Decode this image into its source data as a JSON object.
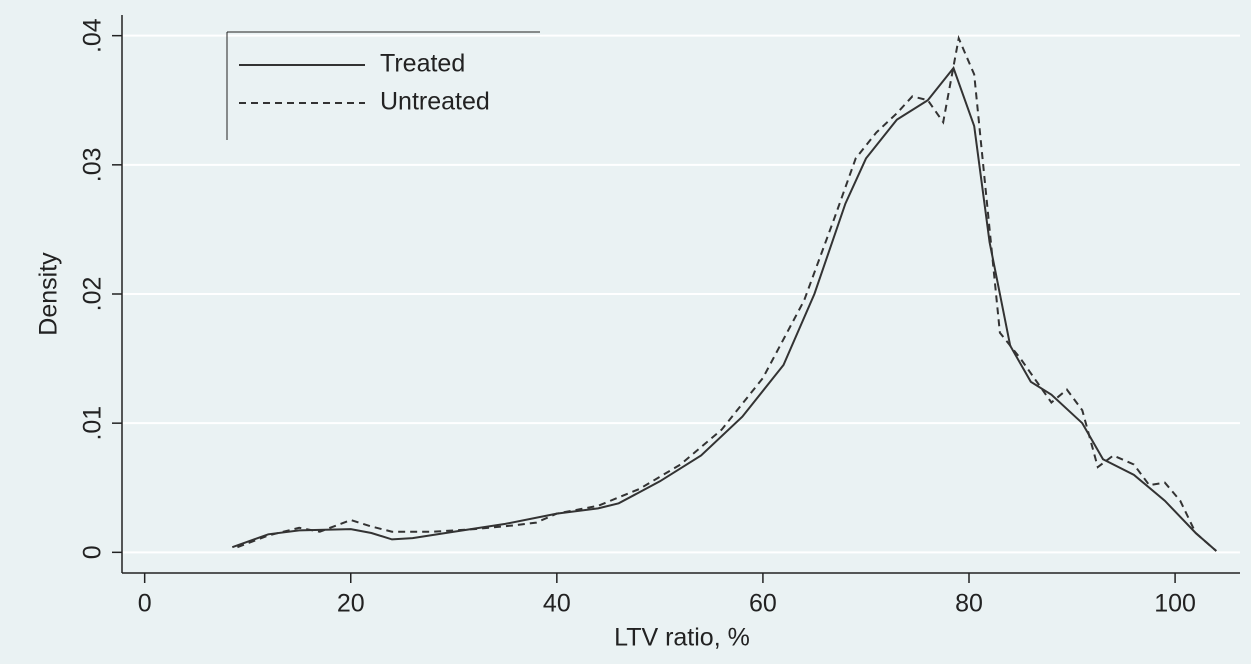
{
  "chart_data": {
    "type": "line",
    "xlabel": "LTV ratio, %",
    "ylabel": "Density",
    "xlim": [
      -2.2,
      106.3
    ],
    "ylim": [
      -0.0016,
      0.0416
    ],
    "xticks": [
      0,
      20,
      40,
      60,
      80,
      100
    ],
    "yticks": [
      0,
      {
        "value": 0.01,
        "label": ".01"
      },
      {
        "value": 0.02,
        "label": ".02"
      },
      {
        "value": 0.03,
        "label": ".03"
      },
      {
        "value": 0.04,
        "label": ".04"
      }
    ],
    "grid": true,
    "legend": "top-left",
    "series": [
      {
        "name": "Treated",
        "color": "#333333",
        "dash": "solid",
        "x": [
          8.5,
          12,
          15,
          20,
          22,
          24,
          26,
          30,
          35,
          40,
          44,
          46,
          50,
          54,
          58,
          62,
          65,
          68,
          70,
          73,
          76,
          78.5,
          80.5,
          82,
          84,
          86,
          88,
          91,
          93,
          96,
          99,
          102,
          104
        ],
        "values": [
          0.0004,
          0.0014,
          0.0017,
          0.0018,
          0.0015,
          0.001,
          0.0011,
          0.0016,
          0.0022,
          0.003,
          0.0034,
          0.0038,
          0.0055,
          0.0075,
          0.0105,
          0.0145,
          0.02,
          0.027,
          0.0305,
          0.0335,
          0.035,
          0.0375,
          0.033,
          0.024,
          0.016,
          0.0132,
          0.0122,
          0.01,
          0.0072,
          0.006,
          0.004,
          0.0015,
          0.0001
        ]
      },
      {
        "name": "Untreated",
        "color": "#333333",
        "dash": "dashed",
        "x": [
          9,
          12,
          15,
          17,
          20,
          22,
          24,
          28,
          32,
          36,
          38,
          40,
          44,
          48,
          52,
          56,
          60,
          64,
          67,
          69,
          71,
          73,
          74.5,
          76,
          77.5,
          79,
          80.5,
          82,
          83,
          85,
          88,
          89.5,
          91,
          92.5,
          94,
          96,
          97.5,
          99,
          100.5,
          102,
          104
        ],
        "values": [
          0.0004,
          0.0013,
          0.0019,
          0.0016,
          0.0025,
          0.002,
          0.0016,
          0.0016,
          0.0018,
          0.0021,
          0.0023,
          0.003,
          0.0036,
          0.0049,
          0.0068,
          0.0095,
          0.0135,
          0.0195,
          0.026,
          0.0305,
          0.0325,
          0.034,
          0.0353,
          0.035,
          0.0333,
          0.0398,
          0.037,
          0.025,
          0.017,
          0.015,
          0.0116,
          0.0126,
          0.011,
          0.0066,
          0.0075,
          0.0068,
          0.0052,
          0.0054,
          0.004,
          0.0015,
          0.0001
        ]
      }
    ]
  }
}
